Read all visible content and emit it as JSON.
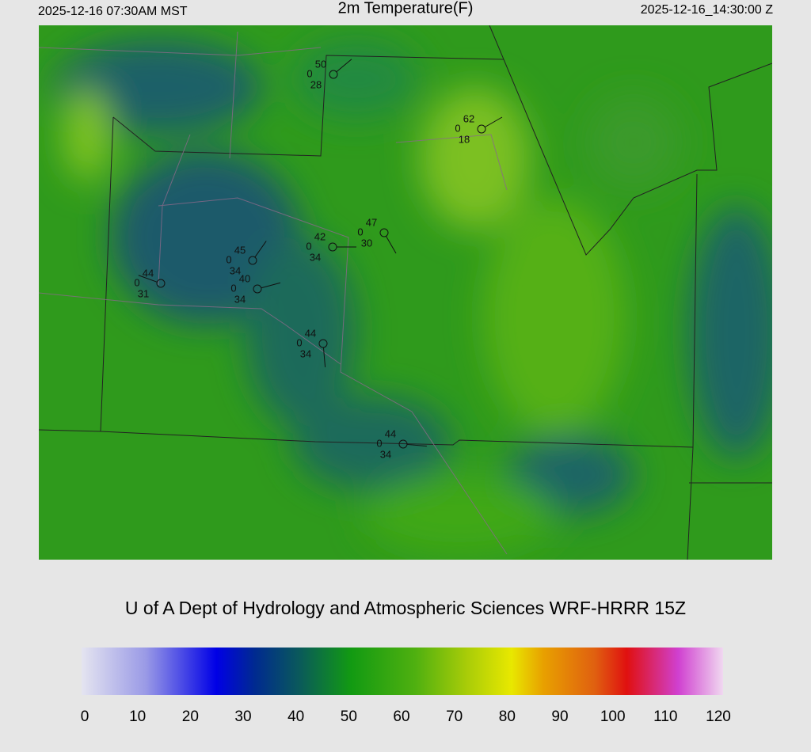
{
  "header": {
    "local_time": "2025-12-16 07:30AM MST",
    "title": "2m Temperature(F)",
    "utc_time": "2025-12-16_14:30:00 Z"
  },
  "stations": [
    {
      "temperature": 50,
      "precip": 0,
      "dewpoint": 28
    },
    {
      "temperature": 62,
      "precip": 0,
      "dewpoint": 18
    },
    {
      "temperature": 47,
      "precip": 0,
      "dewpoint": 30
    },
    {
      "temperature": 42,
      "precip": 0,
      "dewpoint": 34
    },
    {
      "temperature": 45,
      "precip": 0,
      "dewpoint": 34
    },
    {
      "temperature": 40,
      "precip": 0,
      "dewpoint": 34
    },
    {
      "temperature": 44,
      "precip": 0,
      "dewpoint": 31
    },
    {
      "temperature": 44,
      "precip": 0,
      "dewpoint": 34
    },
    {
      "temperature": 44,
      "precip": 0,
      "dewpoint": 34
    }
  ],
  "credit": "U of A Dept of Hydrology and Atmospheric Sciences WRF-HRRR 15Z",
  "colorbar": {
    "lim": [
      0,
      120
    ],
    "ticks": [
      0,
      10,
      20,
      30,
      40,
      50,
      60,
      70,
      80,
      90,
      100,
      110,
      120
    ]
  }
}
